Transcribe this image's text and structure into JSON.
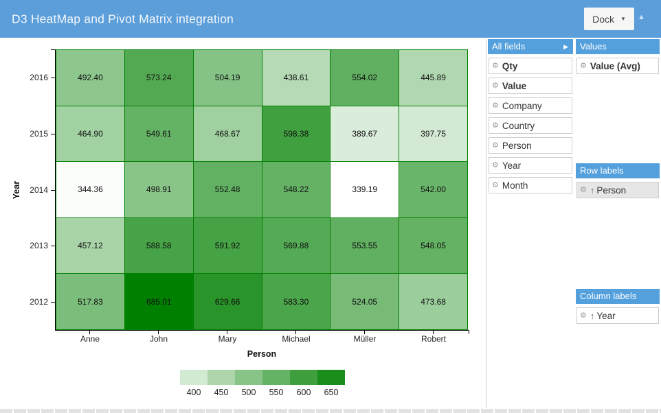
{
  "header": {
    "title": "D3 HeatMap and Pivot Matrix integration",
    "dock_label": "Dock",
    "dock_caret_icon": "▼",
    "collapse_icon": "▲",
    "bg_color": "#5b9ed9"
  },
  "field_chooser": {
    "header_color": "#54a0dd",
    "gear_icon": "⚙",
    "sort_ascending_icon": "↑",
    "all_fields": {
      "title": "All fields",
      "expand_icon": "▶",
      "items": [
        {
          "label": "Qty",
          "bold": true
        },
        {
          "label": "Value",
          "bold": true
        },
        {
          "label": "Company",
          "bold": false
        },
        {
          "label": "Country",
          "bold": false
        },
        {
          "label": "Person",
          "bold": false
        },
        {
          "label": "Year",
          "bold": false
        },
        {
          "label": "Month",
          "bold": false
        }
      ]
    },
    "values": {
      "title": "Values",
      "items": [
        {
          "label": "Value (Avg)",
          "bold": true,
          "sorted": false,
          "selected": false
        }
      ]
    },
    "row_labels": {
      "title": "Row labels",
      "items": [
        {
          "label": "Person",
          "bold": false,
          "sorted": true,
          "selected": true
        }
      ]
    },
    "column_labels": {
      "title": "Column labels",
      "items": [
        {
          "label": "Year",
          "bold": false,
          "sorted": true,
          "selected": false
        }
      ]
    }
  },
  "chart_data": {
    "type": "heatmap",
    "xlabel": "Person",
    "ylabel": "Year",
    "columns": [
      "Anne",
      "John",
      "Mary",
      "Michael",
      "Müller",
      "Robert"
    ],
    "rows": [
      "2016",
      "2015",
      "2014",
      "2013",
      "2012"
    ],
    "values": [
      [
        "492.40",
        "573.24",
        "504.19",
        "438.61",
        "554.02",
        "445.89"
      ],
      [
        "464.90",
        "549.61",
        "468.67",
        "598.38",
        "389.67",
        "397.75"
      ],
      [
        "344.36",
        "498.91",
        "552.48",
        "548.22",
        "339.19",
        "542.00"
      ],
      [
        "457.12",
        "588.58",
        "591.92",
        "569.88",
        "553.55",
        "548.05"
      ],
      [
        "517.83",
        "685.01",
        "629.66",
        "583.30",
        "524.05",
        "473.68"
      ]
    ],
    "color_scale": {
      "min": 339.19,
      "max": 685.01,
      "from": "#ffffff",
      "to": "#008000",
      "stroke": "#008000"
    },
    "legend": {
      "values": [
        400,
        450,
        500,
        550,
        600,
        650
      ]
    },
    "grid": false,
    "legend_position": "bottom"
  }
}
